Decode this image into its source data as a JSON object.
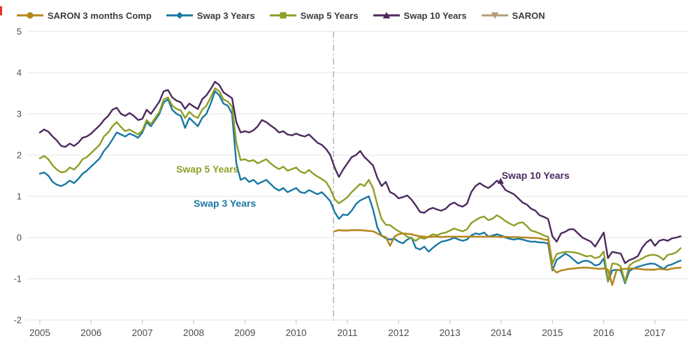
{
  "window": {
    "background": "#ffffff",
    "artifact_color": "#e8312a"
  },
  "legend": {
    "items": [
      {
        "label": "SARON 3 months Comp",
        "color": "#b5871b",
        "marker": "circle"
      },
      {
        "label": "Swap 3 Years",
        "color": "#1878a2",
        "marker": "diamond"
      },
      {
        "label": "Swap 5 Years",
        "color": "#8f9e25",
        "marker": "square"
      },
      {
        "label": "Swap 10 Years",
        "color": "#4c2a5e",
        "marker": "triangle-up"
      },
      {
        "label": "SARON",
        "color": "#b29e76",
        "marker": "triangle-down"
      }
    ]
  },
  "chart_data": {
    "type": "line",
    "title": "",
    "x_axis": {
      "tick_labels": [
        "2005",
        "2006",
        "2007",
        "2008",
        "2009",
        "2010",
        "2011",
        "2012",
        "2013",
        "2014",
        "2015",
        "2016",
        "2017"
      ],
      "start_year": 2005,
      "points_per_year": 12
    },
    "y_axis": {
      "tick_labels": [
        "5",
        "4",
        "3",
        "2",
        "1",
        "0",
        "-1",
        "-2"
      ],
      "ticks": [
        5,
        4,
        3,
        2,
        1,
        0,
        -1,
        -2
      ],
      "min": -2,
      "max": 5,
      "grid": true
    },
    "reference_line": {
      "x": 2010.73,
      "style": "dash-dot",
      "color": "#b4b4b4"
    },
    "annotations": [
      {
        "label": "Swap 5 Years",
        "color": "#8f9e25",
        "x": 2007.66,
        "y": 1.58
      },
      {
        "label": "Swap 3 Years",
        "color": "#1878a2",
        "x": 2008.0,
        "y": 0.75
      },
      {
        "label": "Swap 10 Years",
        "color": "#4c2a5e",
        "x": 2014.01,
        "y": 1.42,
        "point_marker": {
          "x": 2013.99,
          "y": 1.33
        }
      }
    ],
    "series": [
      {
        "name": "SARON",
        "color": "#b29e76",
        "marker": "triangle-down",
        "start": 2010.75,
        "values": [
          0.15,
          0.18,
          0.17,
          0.17,
          0.18,
          0.18,
          0.18,
          0.17,
          0.16,
          0.15,
          0.1,
          0.04,
          0.01,
          -0.2,
          0.02,
          0.08,
          0.1,
          0.09,
          0.08,
          0.05,
          0.03,
          0.02,
          0.01,
          0.02,
          0.02,
          0.01,
          0.02,
          0.02,
          0.02,
          0.02,
          0.02,
          0.02,
          0.02,
          0.02,
          0.02,
          0.02,
          0.02,
          0.02,
          0.02,
          0.01,
          0.02,
          0.01,
          0.01,
          0.01,
          0.0,
          0.0,
          -0.01,
          -0.01,
          -0.02,
          -0.05,
          -0.06,
          -0.75,
          -0.85,
          -0.8,
          -0.78,
          -0.76,
          -0.75,
          -0.74,
          -0.73,
          -0.73,
          -0.74,
          -0.75,
          -0.76,
          -0.75,
          -0.78,
          -1.15,
          -0.8,
          -0.77,
          -0.76,
          -0.75,
          -0.75,
          -0.76,
          -0.77,
          -0.78,
          -0.78,
          -0.78,
          -0.76,
          -0.77,
          -0.78,
          -0.75,
          -0.74,
          -0.73
        ]
      },
      {
        "name": "Swap 3 Years",
        "color": "#1878a2",
        "marker": "diamond",
        "start": 2005.0,
        "values": [
          1.55,
          1.58,
          1.5,
          1.35,
          1.28,
          1.25,
          1.3,
          1.38,
          1.32,
          1.42,
          1.55,
          1.62,
          1.72,
          1.82,
          1.92,
          2.1,
          2.22,
          2.38,
          2.55,
          2.5,
          2.45,
          2.52,
          2.48,
          2.42,
          2.55,
          2.8,
          2.7,
          2.85,
          3.0,
          3.28,
          3.35,
          3.1,
          3.0,
          2.95,
          2.66,
          2.9,
          2.8,
          2.7,
          2.9,
          3.0,
          3.25,
          3.55,
          3.45,
          3.25,
          3.2,
          3.0,
          1.8,
          1.4,
          1.45,
          1.35,
          1.4,
          1.3,
          1.35,
          1.4,
          1.3,
          1.2,
          1.14,
          1.2,
          1.1,
          1.15,
          1.2,
          1.1,
          1.08,
          1.15,
          1.1,
          1.05,
          1.1,
          1.0,
          0.88,
          0.62,
          0.45,
          0.56,
          0.54,
          0.65,
          0.81,
          0.9,
          0.95,
          1.0,
          0.68,
          0.25,
          0.05,
          -0.02,
          -0.05,
          -0.03,
          -0.1,
          -0.14,
          -0.05,
          0.0,
          -0.25,
          -0.29,
          -0.22,
          -0.34,
          -0.25,
          -0.17,
          -0.1,
          -0.08,
          -0.05,
          0.0,
          -0.05,
          -0.08,
          -0.05,
          0.05,
          0.1,
          0.08,
          0.12,
          0.02,
          0.05,
          0.08,
          0.05,
          0.0,
          -0.03,
          -0.05,
          -0.03,
          -0.05,
          -0.08,
          -0.1,
          -0.1,
          -0.12,
          -0.12,
          -0.15,
          -0.8,
          -0.54,
          -0.47,
          -0.39,
          -0.45,
          -0.54,
          -0.63,
          -0.58,
          -0.56,
          -0.6,
          -0.68,
          -0.65,
          -0.51,
          -1.07,
          -0.8,
          -0.78,
          -0.8,
          -1.11,
          -0.81,
          -0.75,
          -0.71,
          -0.68,
          -0.65,
          -0.63,
          -0.64,
          -0.7,
          -0.76,
          -0.68,
          -0.65,
          -0.6,
          -0.56
        ]
      },
      {
        "name": "Swap 5 Years",
        "color": "#8f9e25",
        "marker": "square",
        "start": 2005.0,
        "values": [
          1.92,
          1.98,
          1.9,
          1.75,
          1.65,
          1.58,
          1.6,
          1.7,
          1.65,
          1.75,
          1.9,
          1.95,
          2.05,
          2.15,
          2.25,
          2.45,
          2.55,
          2.7,
          2.8,
          2.68,
          2.58,
          2.62,
          2.56,
          2.5,
          2.6,
          2.85,
          2.75,
          2.9,
          3.05,
          3.35,
          3.4,
          3.2,
          3.12,
          3.08,
          2.9,
          3.05,
          2.95,
          2.9,
          3.1,
          3.2,
          3.4,
          3.62,
          3.55,
          3.35,
          3.3,
          3.18,
          2.3,
          1.88,
          1.9,
          1.85,
          1.88,
          1.8,
          1.85,
          1.9,
          1.8,
          1.72,
          1.66,
          1.72,
          1.62,
          1.66,
          1.7,
          1.6,
          1.56,
          1.64,
          1.55,
          1.48,
          1.42,
          1.35,
          1.18,
          0.93,
          0.83,
          0.9,
          0.98,
          1.1,
          1.2,
          1.3,
          1.25,
          1.4,
          1.2,
          0.8,
          0.45,
          0.31,
          0.3,
          0.22,
          0.15,
          0.1,
          0.02,
          -0.02,
          -0.08,
          0.0,
          -0.03,
          0.02,
          0.08,
          0.05,
          0.1,
          0.12,
          0.17,
          0.22,
          0.18,
          0.15,
          0.2,
          0.35,
          0.42,
          0.48,
          0.51,
          0.42,
          0.46,
          0.54,
          0.48,
          0.4,
          0.34,
          0.29,
          0.35,
          0.37,
          0.28,
          0.17,
          0.14,
          0.1,
          0.05,
          0.02,
          -0.63,
          -0.4,
          -0.37,
          -0.35,
          -0.35,
          -0.36,
          -0.38,
          -0.42,
          -0.46,
          -0.44,
          -0.5,
          -0.47,
          -0.34,
          -1.05,
          -0.63,
          -0.64,
          -0.7,
          -1.08,
          -0.68,
          -0.6,
          -0.56,
          -0.51,
          -0.45,
          -0.42,
          -0.42,
          -0.46,
          -0.54,
          -0.42,
          -0.4,
          -0.36,
          -0.26
        ]
      },
      {
        "name": "SARON 3 months Comp",
        "color": "#b5871b",
        "marker": "circle",
        "start": 2010.75,
        "values": [
          0.15,
          0.18,
          0.17,
          0.17,
          0.18,
          0.18,
          0.18,
          0.17,
          0.16,
          0.15,
          0.1,
          0.04,
          0.01,
          -0.2,
          0.02,
          0.08,
          0.1,
          0.09,
          0.08,
          0.05,
          0.03,
          0.02,
          0.01,
          0.02,
          0.02,
          0.01,
          0.02,
          0.02,
          0.02,
          0.02,
          0.02,
          0.02,
          0.02,
          0.02,
          0.02,
          0.02,
          0.02,
          0.02,
          0.02,
          0.01,
          0.02,
          0.01,
          0.01,
          0.01,
          0.0,
          0.0,
          -0.01,
          -0.01,
          -0.02,
          -0.05,
          -0.06,
          -0.75,
          -0.85,
          -0.8,
          -0.78,
          -0.76,
          -0.75,
          -0.74,
          -0.73,
          -0.73,
          -0.74,
          -0.75,
          -0.76,
          -0.75,
          -0.78,
          -1.15,
          -0.8,
          -0.77,
          -0.76,
          -0.75,
          -0.75,
          -0.76,
          -0.77,
          -0.78,
          -0.78,
          -0.78,
          -0.76,
          -0.77,
          -0.78,
          -0.75,
          -0.74,
          -0.73
        ]
      },
      {
        "name": "Swap 10 Years",
        "color": "#4c2a5e",
        "marker": "triangle-up",
        "start": 2005.0,
        "values": [
          2.55,
          2.62,
          2.57,
          2.45,
          2.35,
          2.22,
          2.2,
          2.28,
          2.22,
          2.3,
          2.42,
          2.45,
          2.52,
          2.62,
          2.72,
          2.85,
          2.95,
          3.1,
          3.15,
          3.0,
          2.95,
          3.02,
          2.95,
          2.85,
          2.88,
          3.1,
          3.0,
          3.15,
          3.3,
          3.55,
          3.58,
          3.4,
          3.32,
          3.28,
          3.12,
          3.25,
          3.18,
          3.12,
          3.35,
          3.45,
          3.6,
          3.78,
          3.7,
          3.52,
          3.45,
          3.38,
          2.8,
          2.55,
          2.58,
          2.55,
          2.6,
          2.7,
          2.85,
          2.8,
          2.72,
          2.65,
          2.55,
          2.58,
          2.5,
          2.48,
          2.52,
          2.48,
          2.45,
          2.5,
          2.4,
          2.3,
          2.25,
          2.15,
          2.0,
          1.7,
          1.47,
          1.65,
          1.8,
          1.95,
          2.0,
          2.1,
          1.95,
          1.85,
          1.75,
          1.45,
          1.25,
          1.35,
          1.1,
          1.05,
          0.95,
          0.98,
          1.02,
          0.92,
          0.78,
          0.62,
          0.6,
          0.68,
          0.72,
          0.68,
          0.65,
          0.7,
          0.8,
          0.85,
          0.78,
          0.75,
          0.82,
          1.1,
          1.25,
          1.32,
          1.25,
          1.2,
          1.28,
          1.38,
          1.3,
          1.15,
          1.1,
          1.05,
          0.95,
          0.85,
          0.8,
          0.7,
          0.65,
          0.54,
          0.5,
          0.45,
          0.03,
          -0.1,
          0.1,
          0.14,
          0.2,
          0.2,
          0.1,
          0.0,
          -0.05,
          -0.1,
          -0.22,
          -0.05,
          0.12,
          -0.5,
          -0.35,
          -0.37,
          -0.39,
          -0.62,
          -0.55,
          -0.51,
          -0.45,
          -0.25,
          -0.12,
          -0.05,
          -0.2,
          -0.08,
          -0.05,
          -0.08,
          -0.02,
          0.0,
          0.03
        ]
      }
    ],
    "legend_position": "top-left",
    "styles": {
      "grid_color": "#e5e5e5",
      "axis_label_color": "#4d4d4d",
      "tick_color": "#b9c6d2"
    }
  }
}
